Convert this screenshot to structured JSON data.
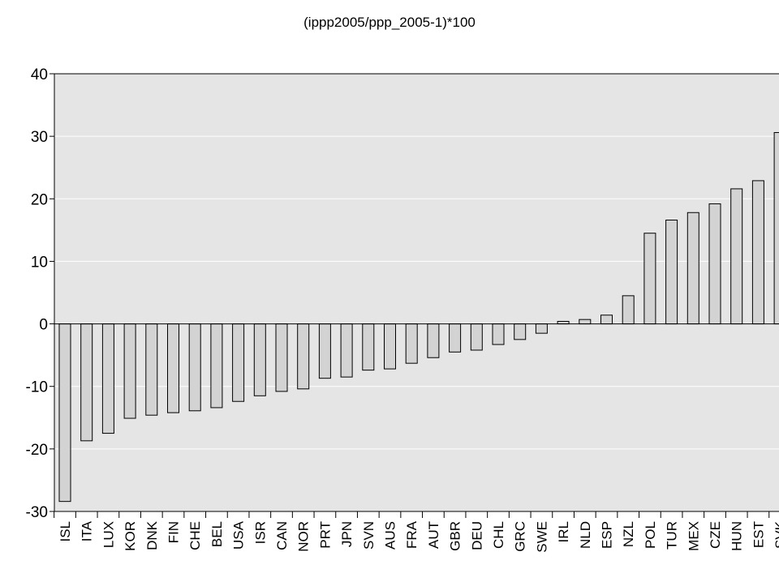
{
  "chart_data": {
    "type": "bar",
    "title": "(ippp2005/ppp_2005-1)*100",
    "xlabel": "",
    "ylabel": "",
    "ylim": [
      -30,
      40
    ],
    "yticks": [
      -30,
      -20,
      -10,
      0,
      10,
      20,
      30,
      40
    ],
    "grid": true,
    "categories": [
      "ISL",
      "ITA",
      "LUX",
      "KOR",
      "DNK",
      "FIN",
      "CHE",
      "BEL",
      "USA",
      "ISR",
      "CAN",
      "NOR",
      "PRT",
      "JPN",
      "SVN",
      "AUS",
      "FRA",
      "AUT",
      "GBR",
      "DEU",
      "CHL",
      "GRC",
      "SWE",
      "IRL",
      "NLD",
      "ESP",
      "NZL",
      "POL",
      "TUR",
      "MEX",
      "CZE",
      "HUN",
      "EST",
      "SVK"
    ],
    "values": [
      -28.4,
      -18.7,
      -17.5,
      -15.1,
      -14.6,
      -14.2,
      -13.9,
      -13.4,
      -12.4,
      -11.5,
      -10.8,
      -10.4,
      -8.7,
      -8.5,
      -7.4,
      -7.2,
      -6.3,
      -5.4,
      -4.5,
      -4.2,
      -3.3,
      -2.5,
      -1.5,
      0.4,
      0.7,
      1.4,
      4.5,
      14.5,
      16.6,
      17.8,
      19.2,
      21.6,
      22.9,
      30.6
    ],
    "colors": {
      "bar_fill": "#d3d3d3",
      "bar_stroke": "#000000",
      "plot_background": "#e5e5e5",
      "grid": "#ffffff"
    }
  }
}
